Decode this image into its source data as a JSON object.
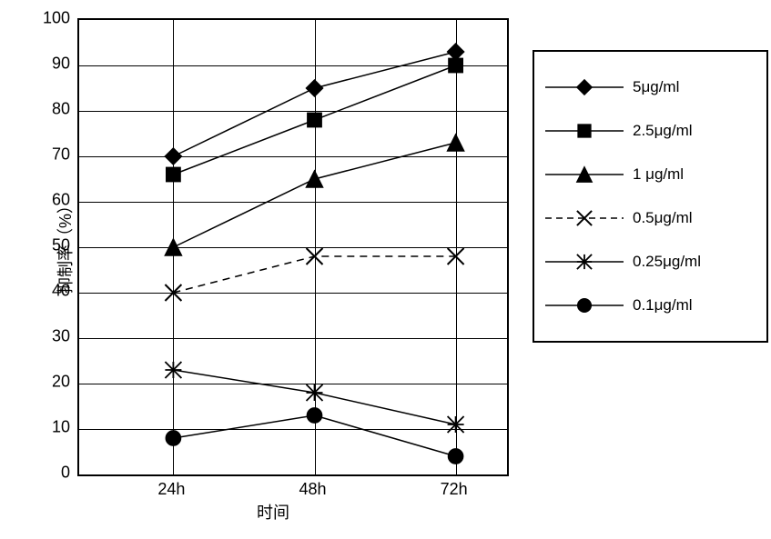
{
  "chart": {
    "type": "line",
    "ylabel": "抑制率（%）",
    "xlabel": "时间",
    "ylim": [
      0,
      100
    ],
    "ytick_step": 10,
    "yticks": [
      0,
      10,
      20,
      30,
      40,
      50,
      60,
      70,
      80,
      90,
      100
    ],
    "categories": [
      "24h",
      "48h",
      "72h"
    ],
    "x_positions": [
      0.22,
      0.55,
      0.88
    ],
    "background_color": "#ffffff",
    "grid_color": "#000000",
    "axis_color": "#000000",
    "text_color": "#000000",
    "label_fontsize": 18,
    "tick_fontsize": 18,
    "line_width": 1.5,
    "marker_size": 9,
    "series": [
      {
        "label": "5μg/ml",
        "values": [
          70,
          85,
          93
        ],
        "marker": "diamond",
        "line_style": "solid",
        "color": "#000000",
        "fill": "#000000"
      },
      {
        "label": "2.5μg/ml",
        "values": [
          66,
          78,
          90
        ],
        "marker": "square",
        "line_style": "solid",
        "color": "#000000",
        "fill": "#000000"
      },
      {
        "label": "1 μg/ml",
        "values": [
          50,
          65,
          73
        ],
        "marker": "triangle",
        "line_style": "solid",
        "color": "#000000",
        "fill": "#000000"
      },
      {
        "label": "0.5μg/ml",
        "values": [
          40,
          48,
          48
        ],
        "marker": "x",
        "line_style": "dashed",
        "color": "#000000",
        "fill": "none"
      },
      {
        "label": "0.25μg/ml",
        "values": [
          23,
          18,
          11
        ],
        "marker": "asterisk",
        "line_style": "solid",
        "color": "#000000",
        "fill": "none"
      },
      {
        "label": "0.1μg/ml",
        "values": [
          8,
          13,
          4
        ],
        "marker": "circle",
        "line_style": "solid",
        "color": "#000000",
        "fill": "#000000"
      }
    ]
  }
}
